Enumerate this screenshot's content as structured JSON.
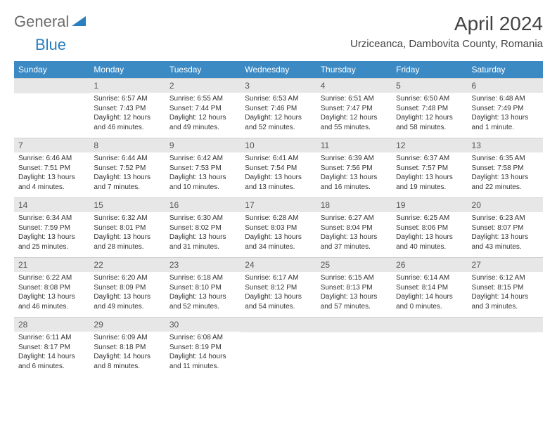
{
  "logo": {
    "text1": "General",
    "text2": "Blue"
  },
  "title": "April 2024",
  "location": "Urziceanca, Dambovita County, Romania",
  "header_bg": "#3b8ac4",
  "daynum_bg": "#e7e7e7",
  "weekdays": [
    "Sunday",
    "Monday",
    "Tuesday",
    "Wednesday",
    "Thursday",
    "Friday",
    "Saturday"
  ],
  "days": {
    "1": {
      "sr": "6:57 AM",
      "ss": "7:43 PM",
      "dl": "12 hours and 46 minutes."
    },
    "2": {
      "sr": "6:55 AM",
      "ss": "7:44 PM",
      "dl": "12 hours and 49 minutes."
    },
    "3": {
      "sr": "6:53 AM",
      "ss": "7:46 PM",
      "dl": "12 hours and 52 minutes."
    },
    "4": {
      "sr": "6:51 AM",
      "ss": "7:47 PM",
      "dl": "12 hours and 55 minutes."
    },
    "5": {
      "sr": "6:50 AM",
      "ss": "7:48 PM",
      "dl": "12 hours and 58 minutes."
    },
    "6": {
      "sr": "6:48 AM",
      "ss": "7:49 PM",
      "dl": "13 hours and 1 minute."
    },
    "7": {
      "sr": "6:46 AM",
      "ss": "7:51 PM",
      "dl": "13 hours and 4 minutes."
    },
    "8": {
      "sr": "6:44 AM",
      "ss": "7:52 PM",
      "dl": "13 hours and 7 minutes."
    },
    "9": {
      "sr": "6:42 AM",
      "ss": "7:53 PM",
      "dl": "13 hours and 10 minutes."
    },
    "10": {
      "sr": "6:41 AM",
      "ss": "7:54 PM",
      "dl": "13 hours and 13 minutes."
    },
    "11": {
      "sr": "6:39 AM",
      "ss": "7:56 PM",
      "dl": "13 hours and 16 minutes."
    },
    "12": {
      "sr": "6:37 AM",
      "ss": "7:57 PM",
      "dl": "13 hours and 19 minutes."
    },
    "13": {
      "sr": "6:35 AM",
      "ss": "7:58 PM",
      "dl": "13 hours and 22 minutes."
    },
    "14": {
      "sr": "6:34 AM",
      "ss": "7:59 PM",
      "dl": "13 hours and 25 minutes."
    },
    "15": {
      "sr": "6:32 AM",
      "ss": "8:01 PM",
      "dl": "13 hours and 28 minutes."
    },
    "16": {
      "sr": "6:30 AM",
      "ss": "8:02 PM",
      "dl": "13 hours and 31 minutes."
    },
    "17": {
      "sr": "6:28 AM",
      "ss": "8:03 PM",
      "dl": "13 hours and 34 minutes."
    },
    "18": {
      "sr": "6:27 AM",
      "ss": "8:04 PM",
      "dl": "13 hours and 37 minutes."
    },
    "19": {
      "sr": "6:25 AM",
      "ss": "8:06 PM",
      "dl": "13 hours and 40 minutes."
    },
    "20": {
      "sr": "6:23 AM",
      "ss": "8:07 PM",
      "dl": "13 hours and 43 minutes."
    },
    "21": {
      "sr": "6:22 AM",
      "ss": "8:08 PM",
      "dl": "13 hours and 46 minutes."
    },
    "22": {
      "sr": "6:20 AM",
      "ss": "8:09 PM",
      "dl": "13 hours and 49 minutes."
    },
    "23": {
      "sr": "6:18 AM",
      "ss": "8:10 PM",
      "dl": "13 hours and 52 minutes."
    },
    "24": {
      "sr": "6:17 AM",
      "ss": "8:12 PM",
      "dl": "13 hours and 54 minutes."
    },
    "25": {
      "sr": "6:15 AM",
      "ss": "8:13 PM",
      "dl": "13 hours and 57 minutes."
    },
    "26": {
      "sr": "6:14 AM",
      "ss": "8:14 PM",
      "dl": "14 hours and 0 minutes."
    },
    "27": {
      "sr": "6:12 AM",
      "ss": "8:15 PM",
      "dl": "14 hours and 3 minutes."
    },
    "28": {
      "sr": "6:11 AM",
      "ss": "8:17 PM",
      "dl": "14 hours and 6 minutes."
    },
    "29": {
      "sr": "6:09 AM",
      "ss": "8:18 PM",
      "dl": "14 hours and 8 minutes."
    },
    "30": {
      "sr": "6:08 AM",
      "ss": "8:19 PM",
      "dl": "14 hours and 11 minutes."
    }
  },
  "labels": {
    "sunrise": "Sunrise: ",
    "sunset": "Sunset: ",
    "daylight": "Daylight: "
  },
  "start_offset": 1,
  "num_days": 30
}
